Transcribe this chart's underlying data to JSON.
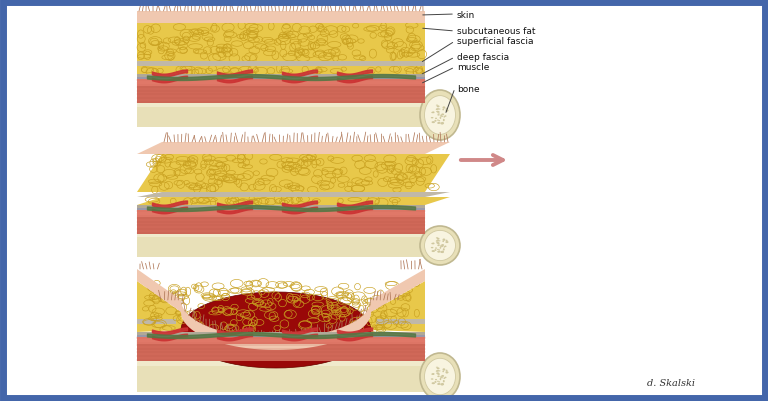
{
  "bg_color": "#ffffff",
  "border_color": "#4466aa",
  "fig_bg": "#ffffff",
  "labels": {
    "skin": "skin",
    "subcut_fat": "subcutaneous fat",
    "superficial_fascia": "superficial fascia",
    "deep_fascia": "deep fascia",
    "muscle": "muscle",
    "bone": "bone"
  },
  "colors": {
    "skin_pink": "#f0c8b0",
    "skin_dark": "#e0a888",
    "hair": "#b07858",
    "fat_yellow": "#e8c84a",
    "fat_yellow2": "#d8b830",
    "fat_bubble": "#c8a020",
    "fascia_gray": "#c0b8a8",
    "fascia_dark": "#a8a098",
    "deep_fascia": "#b0a898",
    "muscle_red": "#d06858",
    "muscle_dark": "#b85848",
    "muscle_light": "#e07868",
    "bone_outer": "#e8e0b8",
    "bone_mid": "#f0eacc",
    "bone_inner": "#f8f4e0",
    "bone_spot": "#d0c8a0",
    "limb_bg": "#f0e8cc",
    "blood_red": "#990808",
    "blood_bright": "#cc2020",
    "vessel_red": "#cc3333",
    "vessel_green": "#557744",
    "arrow_pink": "#d08888",
    "panel_bg": "#f8f0e0"
  },
  "signature": "d. Skalski"
}
